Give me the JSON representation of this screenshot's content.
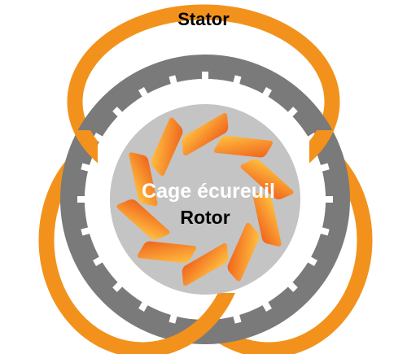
{
  "labels": {
    "stator": "Stator",
    "cage": "Cage écureuil",
    "rotor": "Rotor"
  },
  "colors": {
    "orange": "#f2921c",
    "orange_light": "#ffb03a",
    "orange_dark": "#f06a1a",
    "gray_ring": "#7a7a7a",
    "rotor_fill": "#c4c4c4",
    "text_dark": "#000000",
    "text_light": "#ffffff"
  },
  "rotor": {
    "bar_count": 10
  },
  "stator": {
    "tooth_count": 24,
    "coil_count": 3
  }
}
